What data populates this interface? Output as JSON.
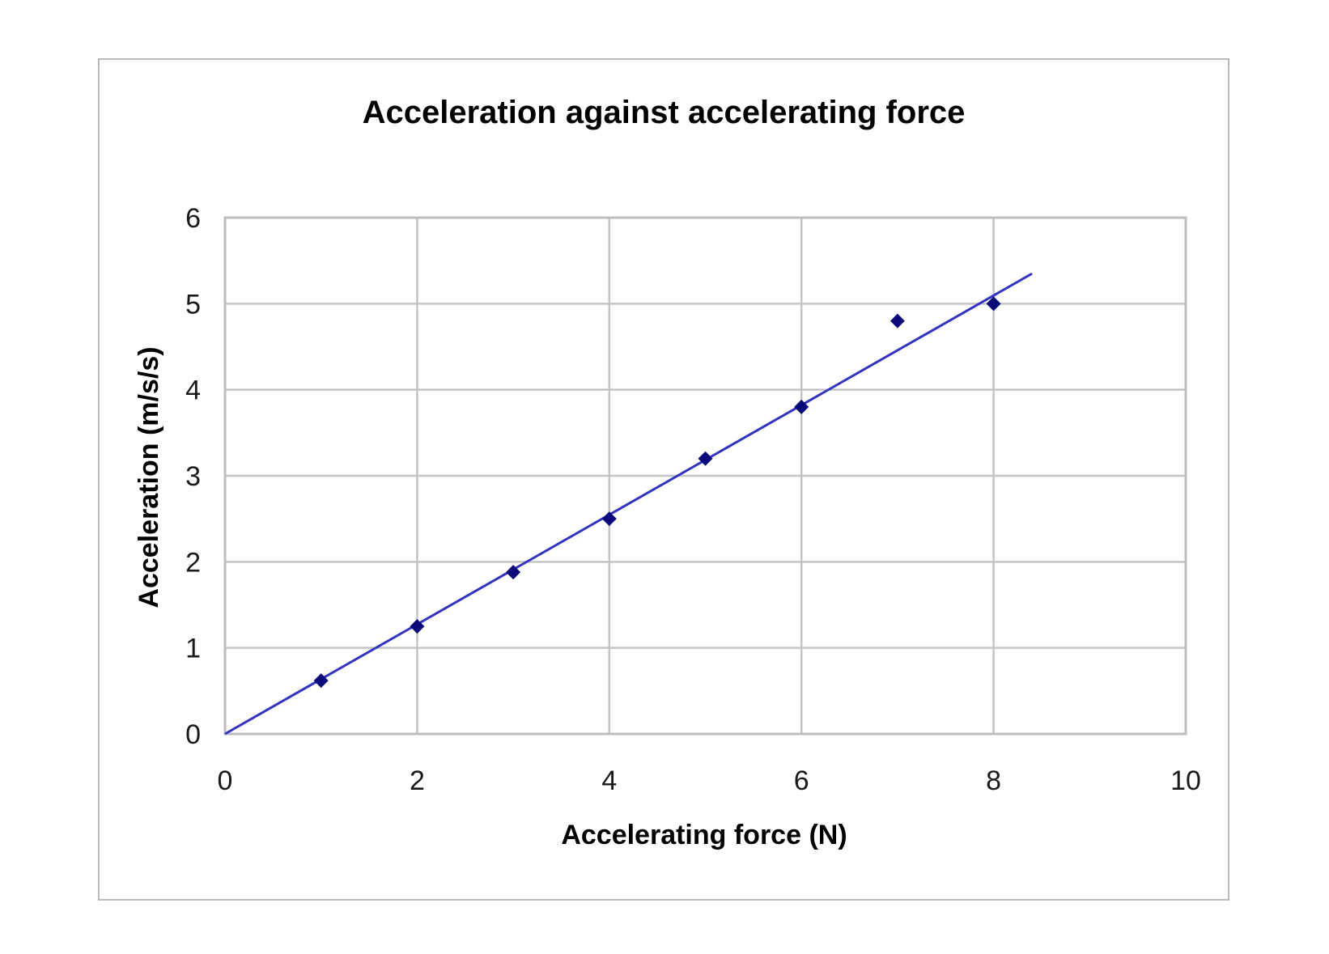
{
  "chart_data": {
    "type": "scatter",
    "title": "Acceleration against accelerating force",
    "xlabel": "Accelerating force (N)",
    "ylabel": "Acceleration (m/s/s)",
    "xlim": [
      0,
      10
    ],
    "ylim": [
      0,
      6
    ],
    "x_ticks": [
      "0",
      "2",
      "4",
      "6",
      "8",
      "10"
    ],
    "y_ticks": [
      "0",
      "1",
      "2",
      "3",
      "4",
      "5",
      "6"
    ],
    "grid": true,
    "legend": "none",
    "series": [
      {
        "marker": "diamond",
        "color": "#0a0a7a",
        "points": [
          {
            "x": 1,
            "y": 0.62
          },
          {
            "x": 2,
            "y": 1.25
          },
          {
            "x": 3,
            "y": 1.88
          },
          {
            "x": 4,
            "y": 2.5
          },
          {
            "x": 5,
            "y": 3.2
          },
          {
            "x": 6,
            "y": 3.8
          },
          {
            "x": 7,
            "y": 4.8
          },
          {
            "x": 8,
            "y": 5.0
          }
        ]
      }
    ],
    "trendline": {
      "color": "#3333c2",
      "x_start": 0,
      "y_start": 0,
      "x_end": 8.4,
      "y_end": 5.35
    }
  }
}
